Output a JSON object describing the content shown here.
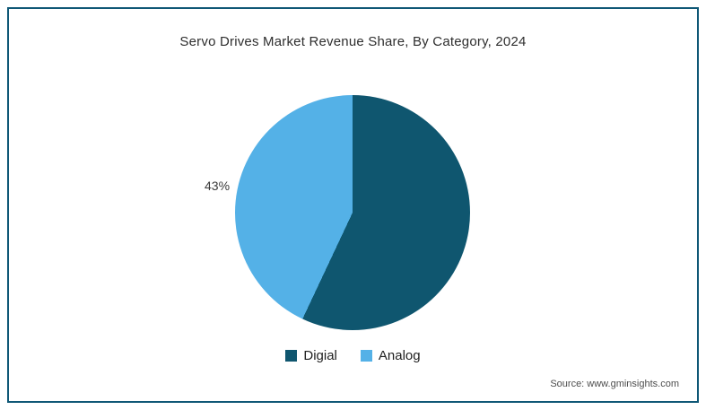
{
  "chart_data": {
    "type": "pie",
    "title": "Servo Drives Market Revenue Share, By Category, 2024",
    "categories": [
      "Digial",
      "Analog"
    ],
    "values": [
      57,
      43
    ],
    "colors": [
      "#0f566f",
      "#54b1e7"
    ],
    "data_labels": [
      {
        "category": "Analog",
        "text": "43%"
      }
    ],
    "legend_position": "bottom",
    "start_angle_deg": 0,
    "direction": "clockwise"
  },
  "colors": {
    "frame_border": "#0f5876",
    "background": "#ffffff",
    "digital_slice": "#0f566f",
    "analog_slice": "#54b1e7"
  },
  "source": "Source: www.gminsights.com"
}
